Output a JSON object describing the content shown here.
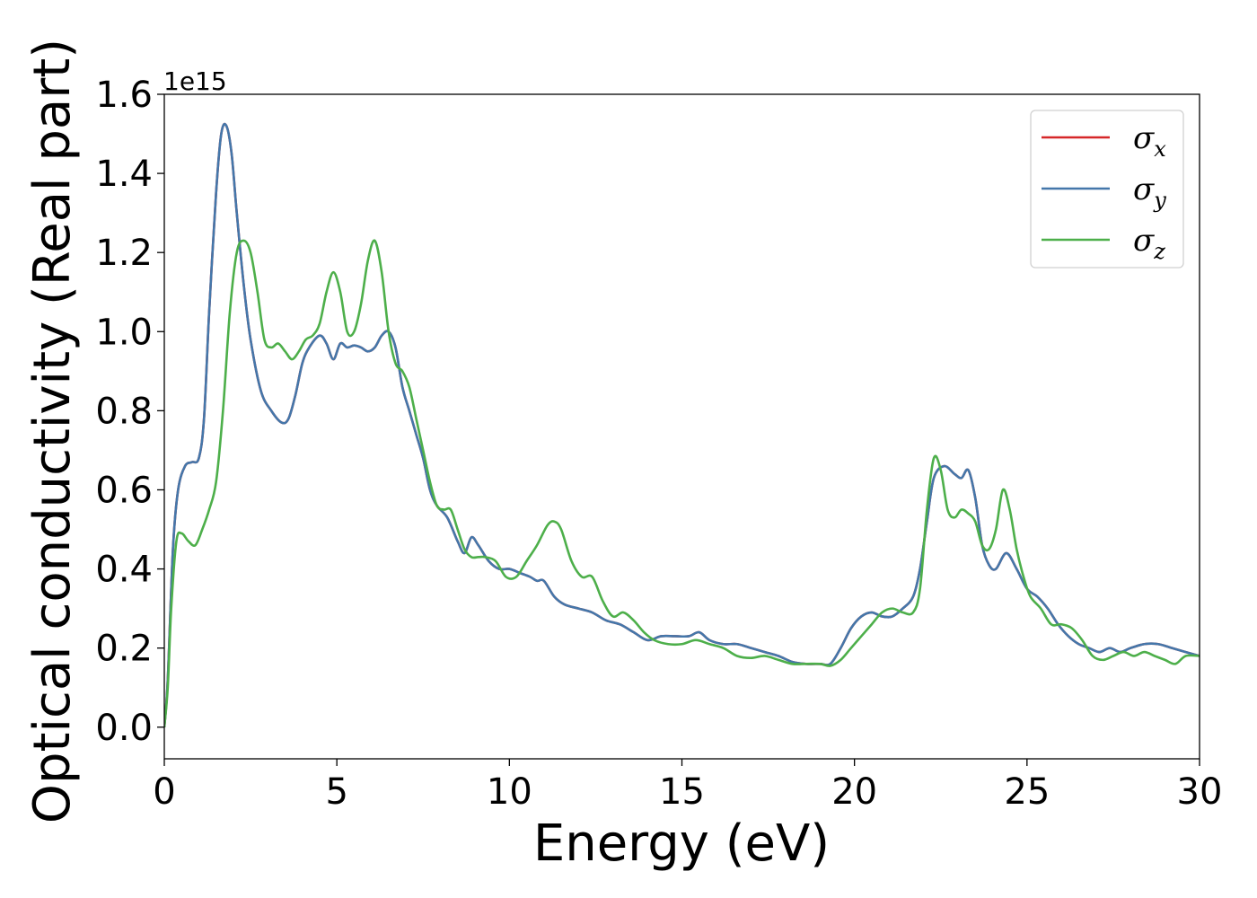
{
  "chart_data": {
    "type": "line",
    "xlabel": "Energy (eV)",
    "ylabel": "Optical conductivity (Real part)",
    "y_offset_text": "1e15",
    "xlim": [
      0,
      30
    ],
    "ylim": [
      -0.08,
      1.6
    ],
    "xticks": [
      0,
      5,
      10,
      15,
      20,
      25,
      30
    ],
    "yticks": [
      0.0,
      0.2,
      0.4,
      0.6,
      0.8,
      1.0,
      1.2,
      1.4,
      1.6
    ],
    "xtick_labels": [
      "0",
      "5",
      "10",
      "15",
      "20",
      "25",
      "30"
    ],
    "ytick_labels": [
      "0.0",
      "0.2",
      "0.4",
      "0.6",
      "0.8",
      "1.0",
      "1.2",
      "1.4",
      "1.6"
    ],
    "grid": false,
    "legend_position": "top-right",
    "legend": [
      {
        "symbol": "σ",
        "sub": "x",
        "color": "#d62728"
      },
      {
        "symbol": "σ",
        "sub": "y",
        "color": "#4477aa"
      },
      {
        "symbol": "σ",
        "sub": "z",
        "color": "#4daf4a"
      }
    ],
    "series": [
      {
        "key": "sigma_x",
        "color": "#d62728",
        "x": [
          0,
          0.1,
          0.25,
          0.4,
          0.6,
          0.8,
          1.0,
          1.15,
          1.3,
          1.5,
          1.65,
          1.8,
          1.95,
          2.1,
          2.3,
          2.5,
          2.8,
          3.1,
          3.4,
          3.6,
          3.8,
          4.0,
          4.2,
          4.5,
          4.7,
          4.9,
          5.1,
          5.3,
          5.5,
          5.7,
          5.9,
          6.1,
          6.3,
          6.5,
          6.7,
          6.9,
          7.1,
          7.3,
          7.5,
          7.7,
          7.9,
          8.2,
          8.5,
          8.7,
          8.9,
          9.1,
          9.4,
          9.7,
          10.0,
          10.3,
          10.6,
          10.8,
          11.0,
          11.3,
          11.6,
          12.0,
          12.4,
          12.8,
          13.2,
          13.6,
          14.0,
          14.4,
          14.8,
          15.2,
          15.5,
          15.8,
          16.2,
          16.6,
          17.0,
          17.4,
          17.8,
          18.2,
          18.6,
          19.0,
          19.3,
          19.6,
          19.9,
          20.2,
          20.5,
          20.8,
          21.1,
          21.4,
          21.7,
          21.9,
          22.1,
          22.3,
          22.6,
          22.9,
          23.1,
          23.3,
          23.5,
          23.7,
          23.9,
          24.1,
          24.4,
          24.7,
          25.0,
          25.3,
          25.6,
          25.9,
          26.2,
          26.5,
          26.8,
          27.1,
          27.4,
          27.7,
          28.0,
          28.4,
          28.8,
          29.2,
          29.6,
          30.0
        ],
        "values": [
          0.0,
          0.12,
          0.45,
          0.6,
          0.66,
          0.67,
          0.68,
          0.78,
          1.05,
          1.35,
          1.5,
          1.52,
          1.45,
          1.3,
          1.12,
          0.98,
          0.85,
          0.8,
          0.77,
          0.78,
          0.84,
          0.92,
          0.96,
          0.99,
          0.97,
          0.93,
          0.97,
          0.96,
          0.965,
          0.96,
          0.95,
          0.96,
          0.99,
          1.0,
          0.96,
          0.86,
          0.8,
          0.74,
          0.68,
          0.6,
          0.56,
          0.53,
          0.47,
          0.44,
          0.48,
          0.46,
          0.42,
          0.4,
          0.4,
          0.39,
          0.38,
          0.37,
          0.37,
          0.33,
          0.31,
          0.3,
          0.29,
          0.27,
          0.26,
          0.24,
          0.22,
          0.23,
          0.23,
          0.23,
          0.24,
          0.22,
          0.21,
          0.21,
          0.2,
          0.19,
          0.18,
          0.165,
          0.16,
          0.16,
          0.16,
          0.2,
          0.25,
          0.28,
          0.29,
          0.28,
          0.28,
          0.3,
          0.33,
          0.4,
          0.52,
          0.63,
          0.66,
          0.64,
          0.63,
          0.65,
          0.58,
          0.46,
          0.41,
          0.4,
          0.44,
          0.4,
          0.35,
          0.33,
          0.3,
          0.26,
          0.23,
          0.21,
          0.2,
          0.19,
          0.2,
          0.19,
          0.2,
          0.21,
          0.21,
          0.2,
          0.19,
          0.18
        ]
      },
      {
        "key": "sigma_y",
        "color": "#4477aa",
        "x": [
          0,
          0.1,
          0.25,
          0.4,
          0.6,
          0.8,
          1.0,
          1.15,
          1.3,
          1.5,
          1.65,
          1.8,
          1.95,
          2.1,
          2.3,
          2.5,
          2.8,
          3.1,
          3.4,
          3.6,
          3.8,
          4.0,
          4.2,
          4.5,
          4.7,
          4.9,
          5.1,
          5.3,
          5.5,
          5.7,
          5.9,
          6.1,
          6.3,
          6.5,
          6.7,
          6.9,
          7.1,
          7.3,
          7.5,
          7.7,
          7.9,
          8.2,
          8.5,
          8.7,
          8.9,
          9.1,
          9.4,
          9.7,
          10.0,
          10.3,
          10.6,
          10.8,
          11.0,
          11.3,
          11.6,
          12.0,
          12.4,
          12.8,
          13.2,
          13.6,
          14.0,
          14.4,
          14.8,
          15.2,
          15.5,
          15.8,
          16.2,
          16.6,
          17.0,
          17.4,
          17.8,
          18.2,
          18.6,
          19.0,
          19.3,
          19.6,
          19.9,
          20.2,
          20.5,
          20.8,
          21.1,
          21.4,
          21.7,
          21.9,
          22.1,
          22.3,
          22.6,
          22.9,
          23.1,
          23.3,
          23.5,
          23.7,
          23.9,
          24.1,
          24.4,
          24.7,
          25.0,
          25.3,
          25.6,
          25.9,
          26.2,
          26.5,
          26.8,
          27.1,
          27.4,
          27.7,
          28.0,
          28.4,
          28.8,
          29.2,
          29.6,
          30.0
        ],
        "values": [
          0.0,
          0.12,
          0.45,
          0.6,
          0.66,
          0.67,
          0.68,
          0.78,
          1.05,
          1.35,
          1.5,
          1.52,
          1.45,
          1.3,
          1.12,
          0.98,
          0.85,
          0.8,
          0.77,
          0.78,
          0.84,
          0.92,
          0.96,
          0.99,
          0.97,
          0.93,
          0.97,
          0.96,
          0.965,
          0.96,
          0.95,
          0.96,
          0.99,
          1.0,
          0.96,
          0.86,
          0.8,
          0.74,
          0.68,
          0.6,
          0.56,
          0.53,
          0.47,
          0.44,
          0.48,
          0.46,
          0.42,
          0.4,
          0.4,
          0.39,
          0.38,
          0.37,
          0.37,
          0.33,
          0.31,
          0.3,
          0.29,
          0.27,
          0.26,
          0.24,
          0.22,
          0.23,
          0.23,
          0.23,
          0.24,
          0.22,
          0.21,
          0.21,
          0.2,
          0.19,
          0.18,
          0.165,
          0.16,
          0.16,
          0.16,
          0.2,
          0.25,
          0.28,
          0.29,
          0.28,
          0.28,
          0.3,
          0.33,
          0.4,
          0.52,
          0.63,
          0.66,
          0.64,
          0.63,
          0.65,
          0.58,
          0.46,
          0.41,
          0.4,
          0.44,
          0.4,
          0.35,
          0.33,
          0.3,
          0.26,
          0.23,
          0.21,
          0.2,
          0.19,
          0.2,
          0.19,
          0.2,
          0.21,
          0.21,
          0.2,
          0.19,
          0.18
        ]
      },
      {
        "key": "sigma_z",
        "color": "#4daf4a",
        "x": [
          0,
          0.1,
          0.2,
          0.35,
          0.5,
          0.7,
          0.9,
          1.1,
          1.3,
          1.5,
          1.7,
          1.9,
          2.1,
          2.3,
          2.5,
          2.7,
          2.9,
          3.1,
          3.3,
          3.5,
          3.7,
          3.9,
          4.1,
          4.3,
          4.5,
          4.7,
          4.9,
          5.1,
          5.3,
          5.5,
          5.7,
          5.9,
          6.1,
          6.3,
          6.5,
          6.7,
          6.9,
          7.1,
          7.3,
          7.5,
          7.7,
          7.9,
          8.1,
          8.3,
          8.5,
          8.7,
          8.9,
          9.1,
          9.3,
          9.6,
          9.9,
          10.2,
          10.5,
          10.8,
          11.1,
          11.3,
          11.5,
          11.8,
          12.1,
          12.4,
          12.7,
          13.0,
          13.3,
          13.6,
          13.9,
          14.2,
          14.6,
          15.0,
          15.4,
          15.8,
          16.2,
          16.6,
          17.0,
          17.4,
          17.8,
          18.2,
          18.6,
          19.0,
          19.3,
          19.6,
          19.9,
          20.2,
          20.5,
          20.8,
          21.1,
          21.4,
          21.7,
          21.9,
          22.1,
          22.3,
          22.5,
          22.7,
          22.9,
          23.1,
          23.3,
          23.5,
          23.7,
          23.9,
          24.1,
          24.3,
          24.5,
          24.7,
          24.9,
          25.1,
          25.4,
          25.7,
          26.0,
          26.3,
          26.6,
          26.9,
          27.2,
          27.5,
          27.8,
          28.1,
          28.4,
          28.7,
          29.0,
          29.3,
          29.6,
          30.0
        ],
        "values": [
          0.0,
          0.1,
          0.3,
          0.47,
          0.49,
          0.47,
          0.46,
          0.5,
          0.55,
          0.62,
          0.8,
          1.05,
          1.2,
          1.23,
          1.2,
          1.1,
          0.98,
          0.96,
          0.97,
          0.95,
          0.93,
          0.95,
          0.98,
          0.99,
          1.02,
          1.1,
          1.15,
          1.1,
          1.0,
          1.0,
          1.07,
          1.18,
          1.23,
          1.15,
          1.0,
          0.92,
          0.9,
          0.86,
          0.78,
          0.7,
          0.62,
          0.56,
          0.55,
          0.55,
          0.5,
          0.45,
          0.43,
          0.43,
          0.43,
          0.42,
          0.38,
          0.38,
          0.42,
          0.46,
          0.51,
          0.52,
          0.5,
          0.42,
          0.38,
          0.38,
          0.32,
          0.28,
          0.29,
          0.27,
          0.24,
          0.22,
          0.21,
          0.21,
          0.22,
          0.21,
          0.2,
          0.18,
          0.175,
          0.18,
          0.17,
          0.16,
          0.16,
          0.16,
          0.155,
          0.17,
          0.2,
          0.23,
          0.26,
          0.29,
          0.3,
          0.29,
          0.29,
          0.35,
          0.55,
          0.68,
          0.65,
          0.55,
          0.53,
          0.55,
          0.54,
          0.52,
          0.46,
          0.45,
          0.5,
          0.6,
          0.55,
          0.45,
          0.38,
          0.33,
          0.3,
          0.26,
          0.26,
          0.25,
          0.22,
          0.18,
          0.17,
          0.18,
          0.19,
          0.18,
          0.19,
          0.18,
          0.17,
          0.16,
          0.18,
          0.18
        ]
      }
    ]
  }
}
